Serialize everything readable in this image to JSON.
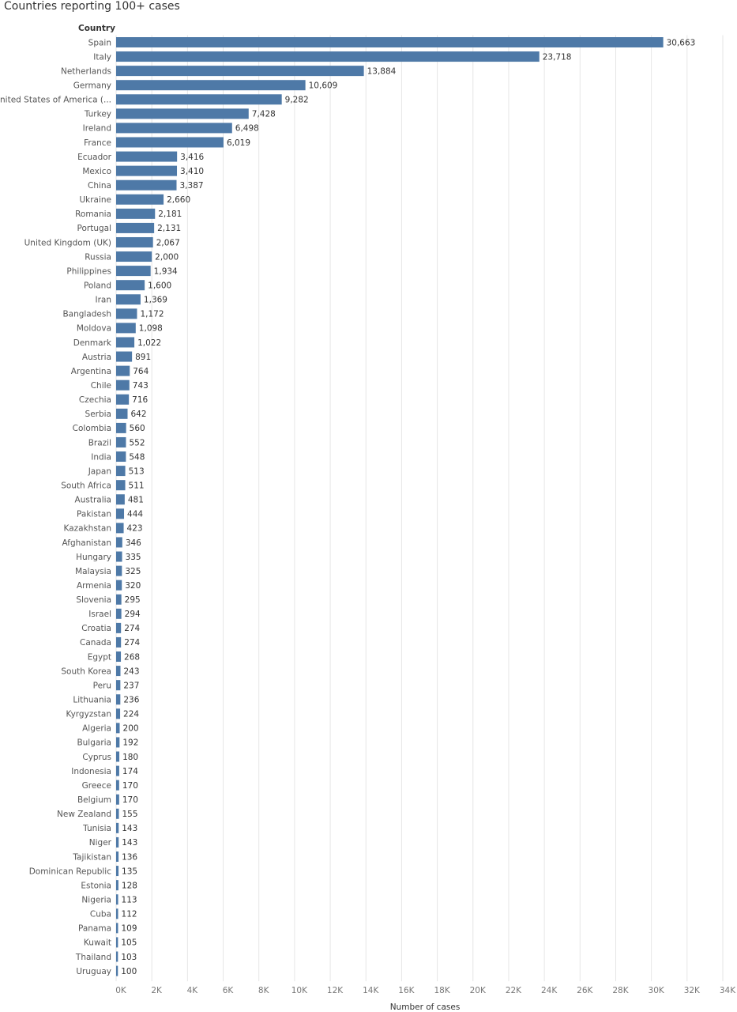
{
  "chart_data": {
    "type": "bar",
    "orientation": "horizontal",
    "title": "Countries reporting 100+ cases",
    "category_header": "Country",
    "xlabel": "Number of cases",
    "xlim": [
      0,
      34000
    ],
    "grid": "vertical",
    "bar_color": "#4e79a7",
    "x_ticks": [
      "0K",
      "2K",
      "4K",
      "6K",
      "8K",
      "10K",
      "12K",
      "14K",
      "16K",
      "18K",
      "20K",
      "22K",
      "24K",
      "26K",
      "28K",
      "30K",
      "32K",
      "34K"
    ],
    "categories": [
      "Spain",
      "Italy",
      "Netherlands",
      "Germany",
      "United States of America (...",
      "Turkey",
      "Ireland",
      "France",
      "Ecuador",
      "Mexico",
      "China",
      "Ukraine",
      "Romania",
      "Portugal",
      "United Kingdom (UK)",
      "Russia",
      "Philippines",
      "Poland",
      "Iran",
      "Bangladesh",
      "Moldova",
      "Denmark",
      "Austria",
      "Argentina",
      "Chile",
      "Czechia",
      "Serbia",
      "Colombia",
      "Brazil",
      "India",
      "Japan",
      "South Africa",
      "Australia",
      "Pakistan",
      "Kazakhstan",
      "Afghanistan",
      "Hungary",
      "Malaysia",
      "Armenia",
      "Slovenia",
      "Israel",
      "Croatia",
      "Canada",
      "Egypt",
      "South Korea",
      "Peru",
      "Lithuania",
      "Kyrgyzstan",
      "Algeria",
      "Bulgaria",
      "Cyprus",
      "Indonesia",
      "Greece",
      "Belgium",
      "New Zealand",
      "Tunisia",
      "Niger",
      "Tajikistan",
      "Dominican Republic",
      "Estonia",
      "Nigeria",
      "Cuba",
      "Panama",
      "Kuwait",
      "Thailand",
      "Uruguay"
    ],
    "values": [
      30663,
      23718,
      13884,
      10609,
      9282,
      7428,
      6498,
      6019,
      3416,
      3410,
      3387,
      2660,
      2181,
      2131,
      2067,
      2000,
      1934,
      1600,
      1369,
      1172,
      1098,
      1022,
      891,
      764,
      743,
      716,
      642,
      560,
      552,
      548,
      513,
      511,
      481,
      444,
      423,
      346,
      335,
      325,
      320,
      295,
      294,
      274,
      274,
      268,
      243,
      237,
      236,
      224,
      200,
      192,
      180,
      174,
      170,
      170,
      155,
      143,
      143,
      136,
      135,
      128,
      113,
      112,
      109,
      105,
      103,
      100
    ],
    "value_labels": [
      "30,663",
      "23,718",
      "13,884",
      "10,609",
      "9,282",
      "7,428",
      "6,498",
      "6,019",
      "3,416",
      "3,410",
      "3,387",
      "2,660",
      "2,181",
      "2,131",
      "2,067",
      "2,000",
      "1,934",
      "1,600",
      "1,369",
      "1,172",
      "1,098",
      "1,022",
      "891",
      "764",
      "743",
      "716",
      "642",
      "560",
      "552",
      "548",
      "513",
      "511",
      "481",
      "444",
      "423",
      "346",
      "335",
      "325",
      "320",
      "295",
      "294",
      "274",
      "274",
      "268",
      "243",
      "237",
      "236",
      "224",
      "200",
      "192",
      "180",
      "174",
      "170",
      "170",
      "155",
      "143",
      "143",
      "136",
      "135",
      "128",
      "113",
      "112",
      "109",
      "105",
      "103",
      "100"
    ]
  }
}
